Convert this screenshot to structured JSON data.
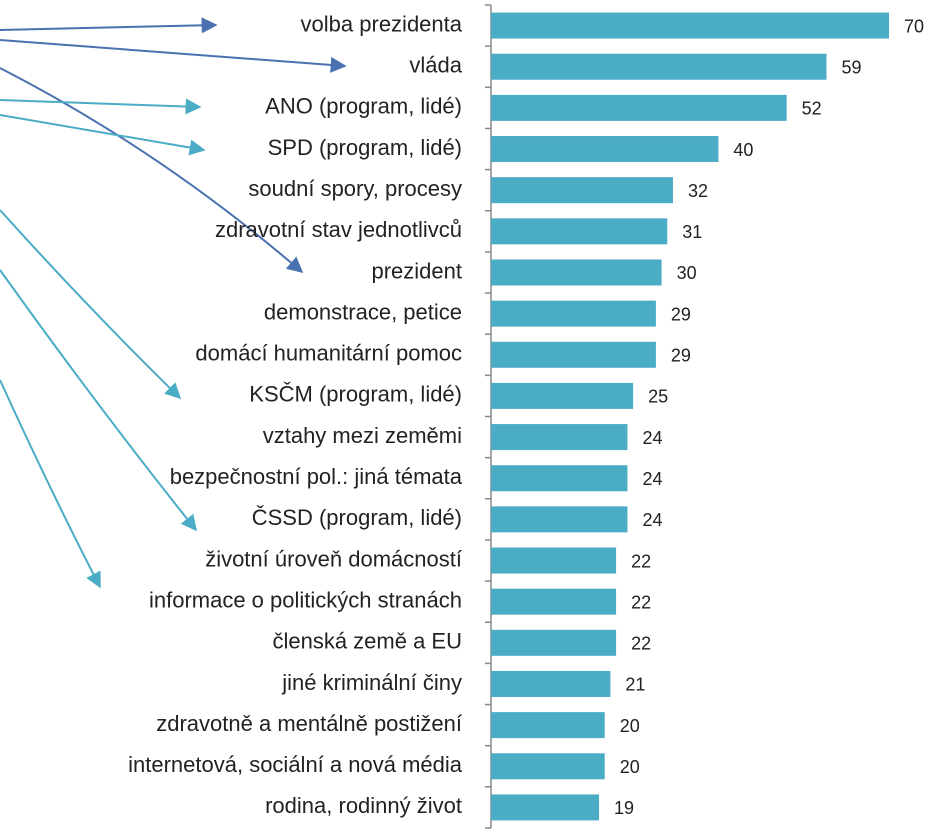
{
  "chart_data": {
    "type": "bar",
    "orientation": "horizontal",
    "categories": [
      "volba prezidenta",
      "vláda",
      "ANO (program, lidé)",
      "SPD (program, lidé)",
      "soudní spory, procesy",
      "zdravotní stav jednotlivců",
      "prezident",
      "demonstrace, petice",
      "domácí humanitární pomoc",
      "KSČM (program, lidé)",
      "vztahy mezi zeměmi",
      "bezpečnostní pol.: jiná témata",
      "ČSSD (program, lidé)",
      "životní úroveň domácností",
      "informace o politických stranách",
      "členská země a EU",
      "jiné kriminální činy",
      "zdravotně a mentálně postižení",
      "internetová, sociální a nová média",
      "rodina, rodinný život"
    ],
    "values": [
      70,
      59,
      52,
      40,
      32,
      31,
      30,
      29,
      29,
      25,
      24,
      24,
      24,
      22,
      22,
      22,
      21,
      20,
      20,
      19
    ],
    "color": "#4bacc6",
    "xlim": [
      0,
      70
    ]
  }
}
